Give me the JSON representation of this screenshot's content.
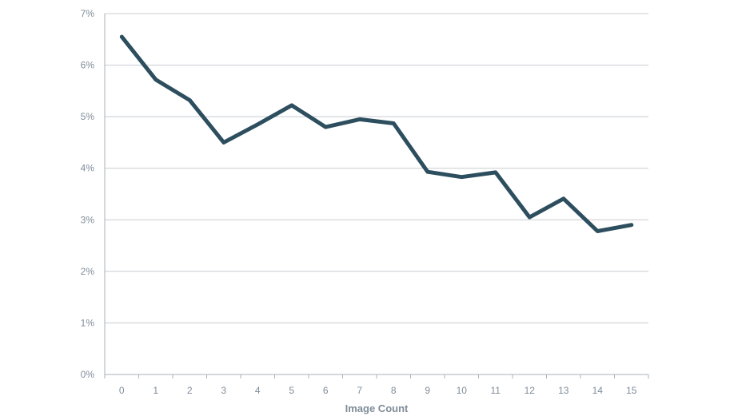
{
  "chart_data": {
    "type": "line",
    "title": "",
    "xlabel": "Image Count",
    "ylabel": "",
    "x": [
      "0",
      "1",
      "2",
      "3",
      "4",
      "5",
      "6",
      "7",
      "8",
      "9",
      "10",
      "11",
      "12",
      "13",
      "14",
      "15"
    ],
    "series": [
      {
        "values": [
          6.55,
          5.72,
          5.32,
          4.5,
          4.85,
          5.22,
          4.8,
          4.95,
          4.87,
          3.93,
          3.83,
          3.92,
          3.05,
          3.41,
          2.78,
          2.9
        ]
      }
    ],
    "ylim": [
      0,
      7
    ],
    "y_ticks": [
      "0%",
      "1%",
      "2%",
      "3%",
      "4%",
      "5%",
      "6%",
      "7%"
    ],
    "grid": "horizontal",
    "legend": "none",
    "colors": {
      "line": "#2d4e5e",
      "grid": "#c8ccd0",
      "axis": "#aab2ba",
      "tick_text": "#7f8c99"
    }
  }
}
